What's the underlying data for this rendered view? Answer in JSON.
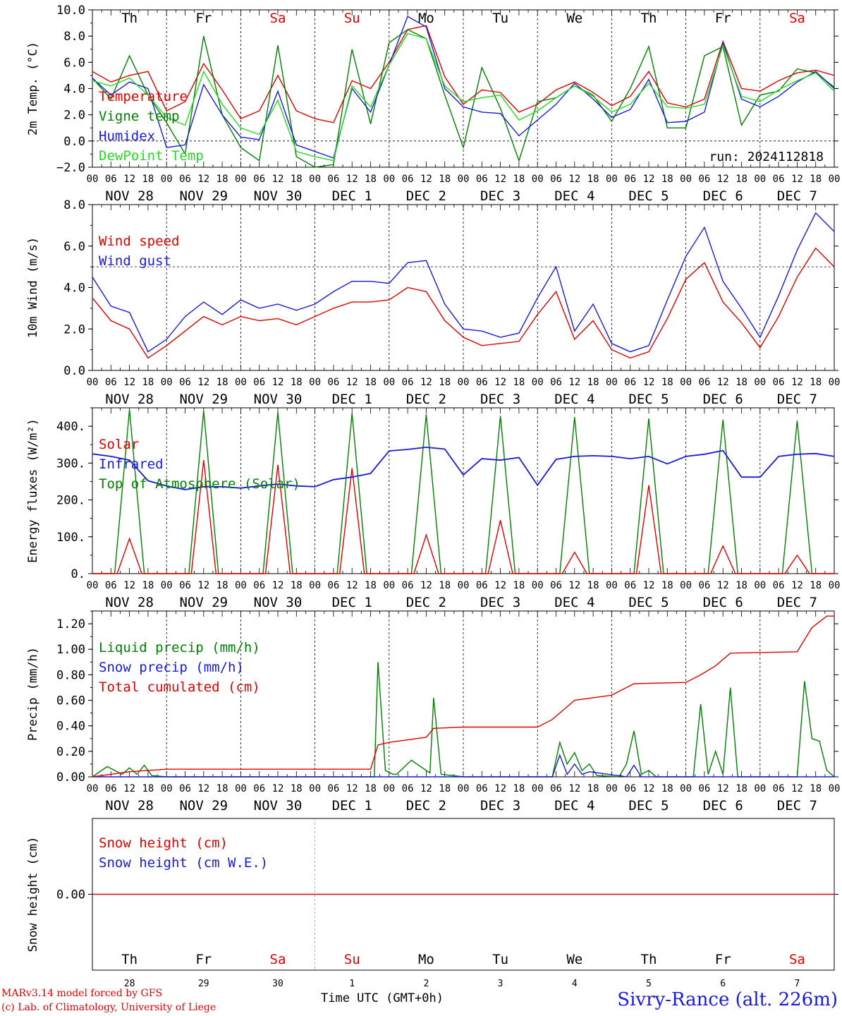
{
  "meta": {
    "run_label": "run: 2024112818",
    "credit_line1": "MARv3.14 model forced by GFS",
    "credit_line2": "(c) Lab. of Climatology, University of Liege",
    "xaxis_title": "Time UTC (GMT+0h)",
    "station": "Sivry-Rance (alt. 226m)",
    "month_label": "DEC",
    "hour_ticks": [
      "00",
      "06",
      "12",
      "18"
    ],
    "date_labels": [
      "NOV 28",
      "NOV 29",
      "NOV 30",
      "DEC  1",
      "DEC  2",
      "DEC  3",
      "DEC  4",
      "DEC  5",
      "DEC  6",
      "DEC  7"
    ],
    "weekdays": [
      "Th",
      "Fr",
      "Sa",
      "Su",
      "Mo",
      "Tu",
      "We",
      "Th",
      "Fr",
      "Sa"
    ],
    "weekday_colors": [
      "#000000",
      "#000000",
      "#e00000",
      "#e00000",
      "#000000",
      "#000000",
      "#000000",
      "#000000",
      "#000000",
      "#e00000"
    ],
    "day_numbers": [
      "28",
      "29",
      "30",
      "1",
      "2",
      "3",
      "4",
      "5",
      "6",
      "7"
    ],
    "colors": {
      "red": "#e00000",
      "green": "#008000",
      "blue": "#1a1adb",
      "lightgreen": "#22dd22"
    }
  },
  "chart_data": [
    {
      "id": "temperature",
      "type": "line",
      "ylabel": "2m Temp. (°C)",
      "ylim": [
        -2,
        10
      ],
      "yticks": [
        -2,
        0,
        2,
        4,
        6,
        8,
        10
      ],
      "ytick_labels": [
        "−2.0",
        "0.0",
        "2.0",
        "4.0",
        "6.0",
        "8.0",
        "10.0"
      ],
      "hline": 0,
      "x_days": [
        0,
        0.25,
        0.5,
        0.75,
        1,
        1.25,
        1.5,
        1.75,
        2,
        2.25,
        2.5,
        2.75,
        3,
        3.25,
        3.5,
        3.75,
        4,
        4.25,
        4.5,
        4.75,
        5,
        5.25,
        5.5,
        5.75,
        6,
        6.25,
        6.5,
        6.75,
        7,
        7.25,
        7.5,
        7.75,
        8,
        8.25,
        8.5,
        8.75,
        9,
        9.25,
        9.5,
        9.75,
        10
      ],
      "series": [
        {
          "name": "Temperature",
          "color": "#e00000",
          "values": [
            5.3,
            4.5,
            5.0,
            5.3,
            2.3,
            3.0,
            5.9,
            3.9,
            1.7,
            2.3,
            5.0,
            2.3,
            1.7,
            1.4,
            4.6,
            4.0,
            6.0,
            8.5,
            8.8,
            4.9,
            2.8,
            3.9,
            3.7,
            2.2,
            2.8,
            3.9,
            4.5,
            3.7,
            2.7,
            3.4,
            5.3,
            2.9,
            2.6,
            3.2,
            7.6,
            4.0,
            3.8,
            4.6,
            5.2,
            5.4,
            5.0
          ]
        },
        {
          "name": "Vigne temp",
          "color": "#008000",
          "values": [
            4.8,
            3.2,
            6.5,
            3.5,
            1.4,
            -1.0,
            8.0,
            2.0,
            -0.5,
            -1.5,
            7.3,
            -1.2,
            -2.0,
            -1.8,
            7.0,
            1.3,
            7.5,
            8.5,
            7.8,
            3.5,
            -0.5,
            5.6,
            2.5,
            -1.5,
            3.0,
            3.3,
            4.2,
            3.5,
            1.5,
            4.0,
            7.2,
            1.0,
            1.0,
            6.5,
            7.2,
            1.2,
            3.5,
            3.8,
            5.5,
            5.2,
            4.1
          ]
        },
        {
          "name": "Humidex",
          "color": "#1a1adb",
          "values": [
            4.8,
            3.5,
            4.5,
            4.0,
            -0.5,
            -0.3,
            4.3,
            2.0,
            0.3,
            0.1,
            3.8,
            -0.3,
            -0.8,
            -1.3,
            4.0,
            2.2,
            5.8,
            9.5,
            8.7,
            4.0,
            2.6,
            2.2,
            2.1,
            0.4,
            1.6,
            2.8,
            4.4,
            3.2,
            1.8,
            2.4,
            4.7,
            1.4,
            1.5,
            2.2,
            7.5,
            3.2,
            2.6,
            3.4,
            4.5,
            5.3,
            4.0
          ]
        },
        {
          "name": "DewPoint Temp",
          "color": "#22dd22",
          "values": [
            4.6,
            4.2,
            4.8,
            3.5,
            1.8,
            1.2,
            5.3,
            2.8,
            1.0,
            0.5,
            3.1,
            -0.8,
            -1.2,
            -1.5,
            4.2,
            2.6,
            5.8,
            8.2,
            7.8,
            4.2,
            3.0,
            3.3,
            3.5,
            1.6,
            2.3,
            3.3,
            4.2,
            3.4,
            2.2,
            2.8,
            4.4,
            2.6,
            2.5,
            2.8,
            7.3,
            3.4,
            3.0,
            3.9,
            4.6,
            5.2,
            3.8
          ]
        }
      ]
    },
    {
      "id": "wind",
      "type": "line",
      "ylabel": "10m Wind (m/s)",
      "ylim": [
        0,
        8
      ],
      "yticks": [
        0,
        2,
        4,
        6,
        8
      ],
      "ytick_labels": [
        "0.0",
        "2.0",
        "4.0",
        "6.0",
        "8.0"
      ],
      "hline": 5,
      "x_days": [
        0,
        0.25,
        0.5,
        0.75,
        1,
        1.25,
        1.5,
        1.75,
        2,
        2.25,
        2.5,
        2.75,
        3,
        3.25,
        3.5,
        3.75,
        4,
        4.25,
        4.5,
        4.75,
        5,
        5.25,
        5.5,
        5.75,
        6,
        6.25,
        6.5,
        6.75,
        7,
        7.25,
        7.5,
        7.75,
        8,
        8.25,
        8.5,
        8.75,
        9,
        9.25,
        9.5,
        9.75,
        10
      ],
      "series": [
        {
          "name": "Wind speed",
          "color": "#e00000",
          "values": [
            3.5,
            2.4,
            2.0,
            0.6,
            1.2,
            1.9,
            2.6,
            2.2,
            2.6,
            2.4,
            2.5,
            2.2,
            2.6,
            3.0,
            3.3,
            3.3,
            3.4,
            4.0,
            3.8,
            2.4,
            1.6,
            1.2,
            1.3,
            1.4,
            2.7,
            3.8,
            1.5,
            2.4,
            1.0,
            0.6,
            0.9,
            2.5,
            4.4,
            5.2,
            3.3,
            2.3,
            1.1,
            2.6,
            4.5,
            5.9,
            5.0
          ]
        },
        {
          "name": "Wind gust",
          "color": "#1a1adb",
          "values": [
            4.5,
            3.1,
            2.8,
            0.9,
            1.5,
            2.6,
            3.3,
            2.7,
            3.4,
            3.0,
            3.2,
            2.9,
            3.2,
            3.8,
            4.3,
            4.3,
            4.2,
            5.2,
            5.3,
            3.2,
            2.0,
            1.9,
            1.6,
            1.8,
            3.5,
            5.0,
            1.9,
            3.2,
            1.3,
            0.9,
            1.2,
            3.4,
            5.5,
            6.9,
            4.3,
            3.0,
            1.6,
            3.6,
            5.8,
            7.6,
            6.7
          ]
        }
      ]
    },
    {
      "id": "energy",
      "type": "line",
      "ylabel": "Energy fluxes (W/m²)",
      "ylim": [
        0,
        450
      ],
      "yticks": [
        0,
        100,
        200,
        300,
        400
      ],
      "ytick_labels": [
        "0.",
        "100.",
        "200.",
        "300.",
        "400."
      ],
      "solar_toa": {
        "name": "Top of Atmosphere (Solar)",
        "color": "#008000",
        "rise_hour": 7.2,
        "set_hour": 16.8,
        "peaks": [
          445,
          442,
          438,
          435,
          432,
          428,
          425,
          421,
          418,
          415
        ]
      },
      "solar_surface": {
        "name": "Solar",
        "color": "#e00000",
        "rise_hour": 8.0,
        "set_hour": 16.0,
        "peaks": [
          95,
          308,
          295,
          286,
          105,
          145,
          58,
          240,
          75,
          50
        ]
      },
      "infrared": {
        "name": "Infrared",
        "color": "#1a1adb",
        "x_days": [
          0,
          0.25,
          0.5,
          0.75,
          1,
          1.25,
          1.5,
          1.75,
          2,
          2.25,
          2.5,
          2.75,
          3,
          3.25,
          3.5,
          3.75,
          4,
          4.25,
          4.5,
          4.75,
          5,
          5.25,
          5.5,
          5.75,
          6,
          6.25,
          6.5,
          6.75,
          7,
          7.25,
          7.5,
          7.75,
          8,
          8.25,
          8.5,
          8.75,
          9,
          9.25,
          9.5,
          9.75,
          10
        ],
        "values": [
          325,
          318,
          308,
          252,
          238,
          228,
          236,
          236,
          232,
          238,
          243,
          238,
          236,
          255,
          262,
          272,
          333,
          337,
          343,
          338,
          268,
          312,
          308,
          315,
          240,
          310,
          318,
          320,
          318,
          312,
          318,
          298,
          318,
          324,
          334,
          262,
          262,
          318,
          324,
          326,
          318
        ]
      }
    },
    {
      "id": "precip",
      "type": "line",
      "ylabel": "Precip (mm/h)",
      "ylim": [
        0,
        1.3
      ],
      "yticks": [
        0,
        0.2,
        0.4,
        0.6,
        0.8,
        1.0,
        1.2
      ],
      "ytick_labels": [
        "0.00",
        "0.20",
        "0.40",
        "0.60",
        "0.80",
        "1.00",
        "1.20"
      ],
      "series": [
        {
          "name": "Liquid precip (mm/h)",
          "color": "#008000",
          "x_days": [
            0,
            0.2,
            0.4,
            0.5,
            0.6,
            0.7,
            0.8,
            1,
            3.8,
            3.85,
            3.95,
            4.05,
            4.1,
            4.3,
            4.55,
            4.6,
            4.7,
            5,
            6.2,
            6.3,
            6.4,
            6.5,
            6.6,
            6.7,
            6.8,
            7.1,
            7.2,
            7.3,
            7.4,
            7.5,
            7.6,
            8.1,
            8.2,
            8.3,
            8.4,
            8.5,
            8.6,
            8.7,
            9.5,
            9.6,
            9.7,
            9.8,
            9.9,
            10
          ],
          "values": [
            0,
            0.08,
            0.02,
            0.07,
            0.02,
            0.09,
            0.01,
            0,
            0,
            0.9,
            0.05,
            0.02,
            0.02,
            0.13,
            0.03,
            0.62,
            0.02,
            0,
            0,
            0.27,
            0.1,
            0.19,
            0.05,
            0.1,
            0.01,
            0,
            0.1,
            0.36,
            0.02,
            0.05,
            0,
            0,
            0.57,
            0.02,
            0.2,
            0.02,
            0.7,
            0,
            0,
            0.75,
            0.3,
            0.28,
            0.05,
            0
          ]
        },
        {
          "name": "Snow precip (mm/h)",
          "color": "#1a1adb",
          "x_days": [
            0,
            6.2,
            6.3,
            6.4,
            6.5,
            6.6,
            6.7,
            7.2,
            7.3,
            7.4,
            10
          ],
          "values": [
            0,
            0,
            0.17,
            0.02,
            0.1,
            0.02,
            0.04,
            0,
            0.09,
            0,
            0
          ]
        },
        {
          "name": "Total cumulated (cm)",
          "color": "#e00000",
          "x_days": [
            0,
            0.5,
            1,
            3.75,
            3.85,
            4,
            4.5,
            4.6,
            5,
            6,
            6.2,
            6.5,
            7,
            7.3,
            8,
            8.2,
            8.4,
            8.6,
            9.5,
            9.7,
            9.9,
            10
          ],
          "values": [
            0,
            0.04,
            0.06,
            0.06,
            0.25,
            0.27,
            0.31,
            0.38,
            0.39,
            0.39,
            0.45,
            0.6,
            0.64,
            0.73,
            0.74,
            0.8,
            0.87,
            0.97,
            0.98,
            1.17,
            1.26,
            1.26
          ]
        }
      ]
    },
    {
      "id": "snow",
      "type": "line",
      "ylabel": "Snow height (cm)",
      "ylim": [
        -1,
        1
      ],
      "yticks": [
        0
      ],
      "ytick_labels": [
        "0.00"
      ],
      "series": [
        {
          "name": "Snow height (cm)",
          "color": "#e00000",
          "values": [
            0,
            0
          ]
        },
        {
          "name": "Snow height (cm W.E.)",
          "color": "#1a1adb",
          "values": [
            0,
            0
          ]
        }
      ]
    }
  ]
}
